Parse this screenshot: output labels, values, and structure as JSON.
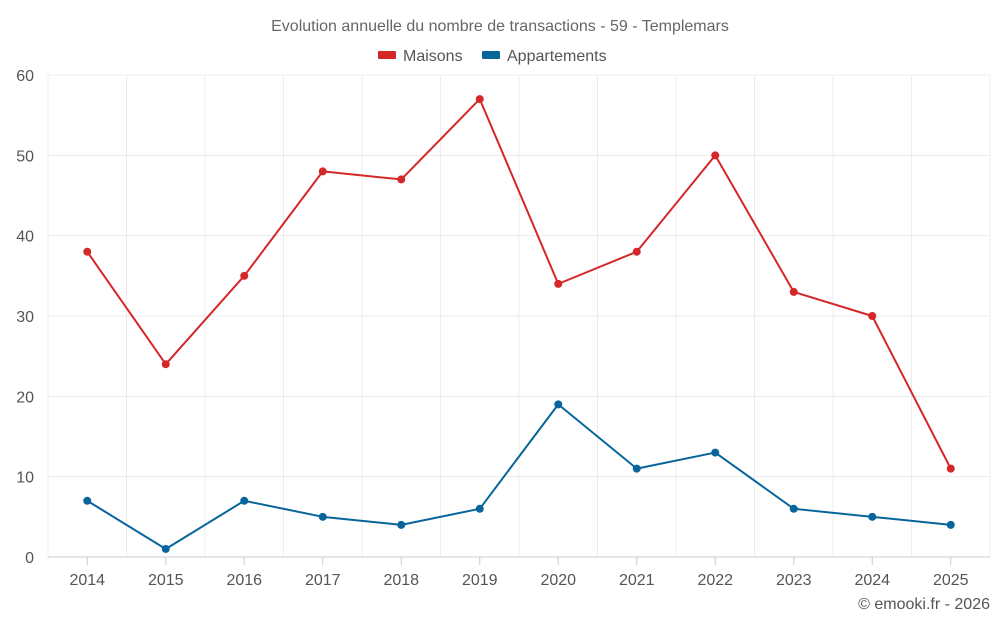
{
  "chart_data": {
    "type": "line",
    "title": "Evolution annuelle du nombre de transactions - 59 - Templemars",
    "categories": [
      "2014",
      "2015",
      "2016",
      "2017",
      "2018",
      "2019",
      "2020",
      "2021",
      "2022",
      "2023",
      "2024",
      "2025"
    ],
    "series": [
      {
        "name": "Maisons",
        "color": "#d62728",
        "values": [
          38,
          24,
          35,
          48,
          47,
          57,
          34,
          38,
          50,
          33,
          30,
          11
        ]
      },
      {
        "name": "Appartements",
        "color": "#08659c",
        "values": [
          7,
          1,
          7,
          5,
          4,
          6,
          19,
          11,
          13,
          6,
          5,
          4
        ]
      }
    ],
    "ylim": [
      0,
      60
    ],
    "yticks": [
      "0",
      "10",
      "20",
      "30",
      "40",
      "50",
      "60"
    ],
    "xlabel": "",
    "ylabel": "",
    "grid": true,
    "legend_position": "top-center"
  },
  "credit": "© emooki.fr - 2026"
}
